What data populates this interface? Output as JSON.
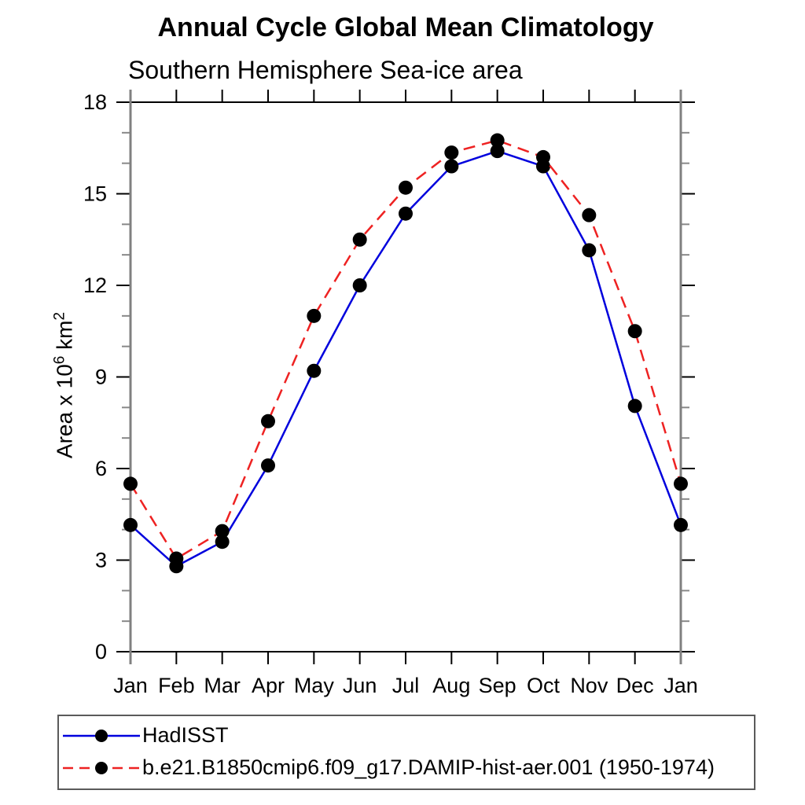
{
  "chart": {
    "title": "Annual Cycle Global Mean Climatology",
    "subtitle": "Southern Hemisphere Sea-ice area",
    "ylabel_parts": {
      "text1": "Area x 10",
      "sup1": "6",
      "text2": " km",
      "sup2": "2"
    }
  },
  "chart_data": {
    "type": "line",
    "title": "Annual Cycle Global Mean Climatology",
    "subtitle": "Southern Hemisphere Sea-ice area",
    "xlabel": "",
    "ylabel": "Area x 10^6 km^2",
    "categories": [
      "Jan",
      "Feb",
      "Mar",
      "Apr",
      "May",
      "Jun",
      "Jul",
      "Aug",
      "Sep",
      "Oct",
      "Nov",
      "Dec",
      "Jan"
    ],
    "series": [
      {
        "name": "HadISST",
        "line_color": "#0000dd",
        "line_style": "solid",
        "marker": "filled-circle",
        "marker_color": "#000000",
        "values": [
          4.15,
          2.8,
          3.6,
          6.1,
          9.2,
          12.0,
          14.35,
          15.9,
          16.4,
          15.9,
          13.15,
          8.05,
          4.15
        ]
      },
      {
        "name": "b.e21.B1850cmip6.f09_g17.DAMIP-hist-aer.001 (1950-1974)",
        "line_color": "#ee2222",
        "line_style": "dashed",
        "marker": "filled-circle",
        "marker_color": "#000000",
        "values": [
          5.5,
          3.05,
          3.95,
          7.55,
          11.0,
          13.5,
          15.2,
          16.35,
          16.75,
          16.2,
          14.3,
          10.5,
          5.5
        ]
      }
    ],
    "ylim": [
      0,
      18
    ],
    "ytick_major": [
      0,
      3,
      6,
      9,
      12,
      15,
      18
    ],
    "ytick_minor_step": 1,
    "grid": false,
    "legend_position": "bottom-left-box"
  },
  "axis_style": {
    "vertical_spine_color": "#808080",
    "horizontal_spine_color": "#000000",
    "major_tick_color": "#000000",
    "minor_tick_color": "#888888",
    "tick_label_color": "#000000"
  }
}
